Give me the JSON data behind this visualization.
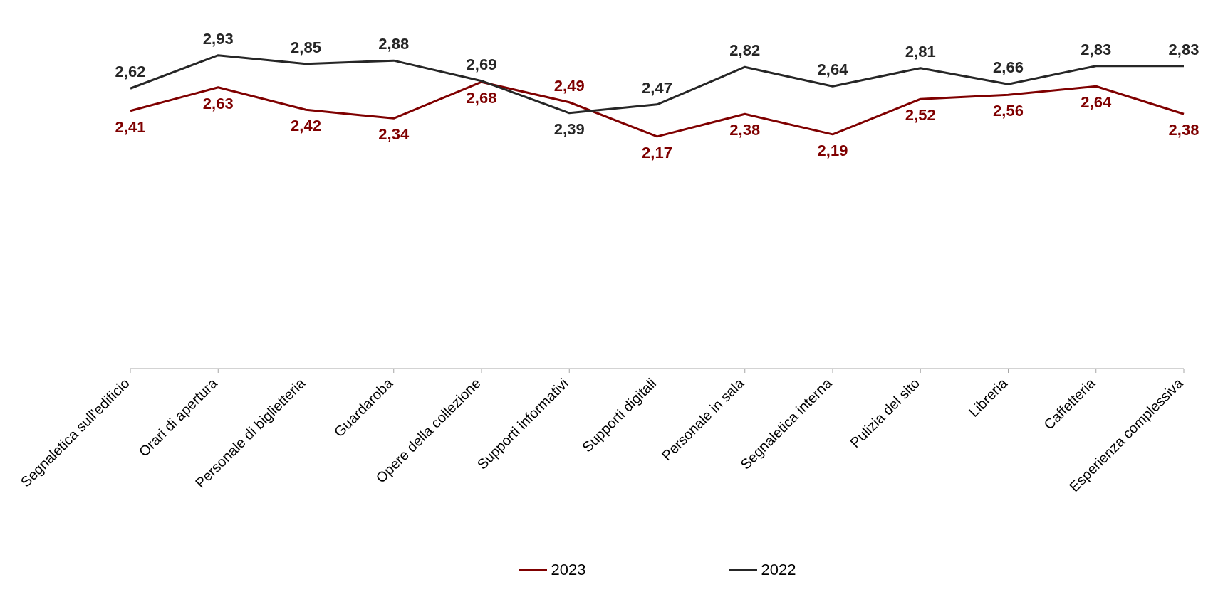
{
  "chart_data": {
    "type": "line",
    "categories": [
      "Segnaletica sull'edificio",
      "Orari di apertura",
      "Personale di biglietteria",
      "Guardaroba",
      "Opere della collezione",
      "Supporti informativi",
      "Supporti digitali",
      "Personale in sala",
      "Segnaletica interna",
      "Pulizia del sito",
      "Libreria",
      "Caffetteria",
      "Esperienza complessiva"
    ],
    "series": [
      {
        "name": "2023",
        "color": "#7f0000",
        "values": [
          2.41,
          2.63,
          2.42,
          2.34,
          2.68,
          2.49,
          2.17,
          2.38,
          2.19,
          2.52,
          2.56,
          2.64,
          2.38
        ],
        "value_labels": [
          "2,41",
          "2,63",
          "2,42",
          "2,34",
          "2,68",
          "2,49",
          "2,17",
          "2,38",
          "2,19",
          "2,52",
          "2,56",
          "2,64",
          "2,38"
        ]
      },
      {
        "name": "2022",
        "color": "#262626",
        "values": [
          2.62,
          2.93,
          2.85,
          2.88,
          2.69,
          2.39,
          2.47,
          2.82,
          2.64,
          2.81,
          2.66,
          2.83,
          2.83
        ],
        "value_labels": [
          "2,62",
          "2,93",
          "2,85",
          "2,88",
          "2,69",
          "2,39",
          "2,47",
          "2,82",
          "2,64",
          "2,81",
          "2,66",
          "2,83",
          "2,83"
        ]
      }
    ],
    "legend": "bottom",
    "grid": false,
    "marker": "none",
    "line_style": "solid"
  }
}
